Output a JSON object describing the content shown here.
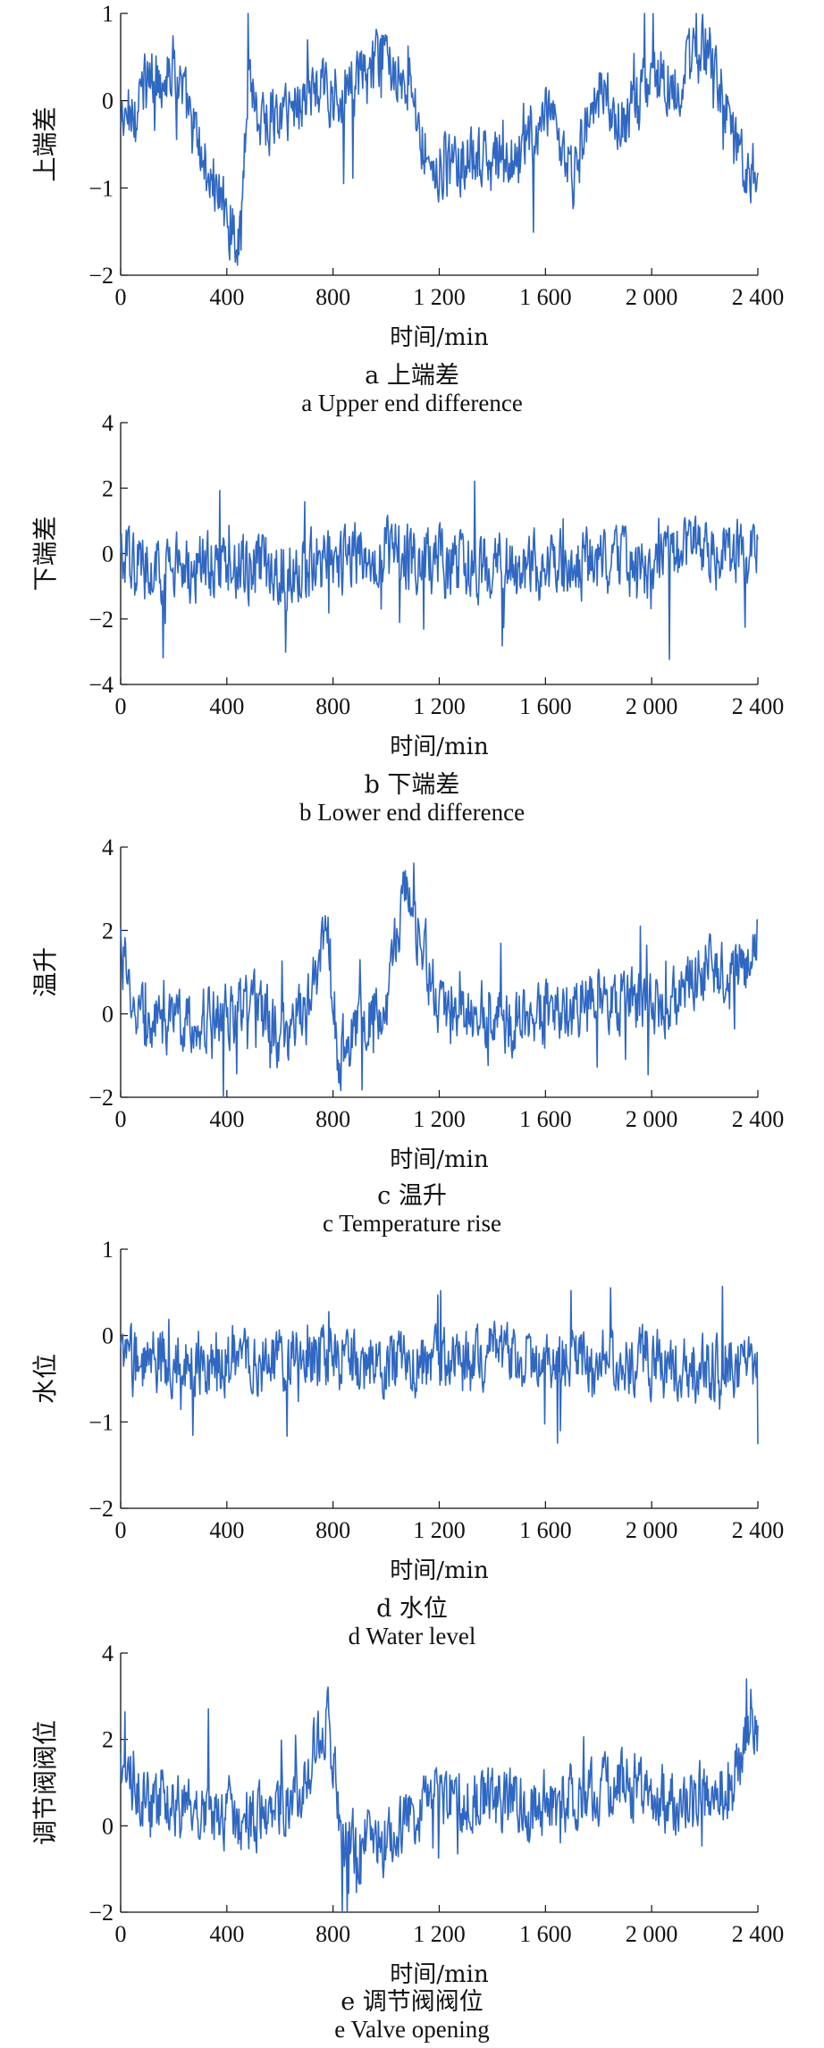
{
  "chart_data": [
    {
      "type": "line",
      "id": "a",
      "ylabel": "上端差",
      "xlabel": "时间/min",
      "caption_cn": "a  上端差",
      "caption_en": "a  Upper end difference",
      "xlim": [
        0,
        2400
      ],
      "ylim": [
        -2,
        1
      ],
      "xticks": [
        0,
        400,
        800,
        1200,
        1600,
        2000,
        2400
      ],
      "xtick_labels": [
        "0",
        "400",
        "800",
        "1 200",
        "1 600",
        "2 000",
        "2 400"
      ],
      "yticks": [
        -2,
        -1,
        0,
        1
      ],
      "ytick_labels": [
        "−2",
        "−1",
        "0",
        "1"
      ],
      "color": "#2f67c2",
      "x": [
        0,
        100,
        200,
        300,
        400,
        450,
        480,
        520,
        600,
        700,
        800,
        900,
        1000,
        1080,
        1150,
        1200,
        1300,
        1400,
        1500,
        1600,
        1700,
        1800,
        1900,
        2000,
        2100,
        2200,
        2250,
        2300,
        2400
      ],
      "y": [
        -0.3,
        0.2,
        0.4,
        -0.6,
        -1.3,
        -1.6,
        0.4,
        -0.2,
        -0.2,
        0.1,
        0.1,
        0.2,
        0.5,
        0.3,
        -0.6,
        -0.8,
        -0.7,
        -0.7,
        -0.6,
        -0.2,
        -0.9,
        0.1,
        -0.3,
        0.3,
        0.2,
        0.6,
        0.3,
        -0.5,
        -0.8
      ]
    },
    {
      "type": "line",
      "id": "b",
      "ylabel": "下端差",
      "xlabel": "时间/min",
      "caption_cn": "b  下端差",
      "caption_en": "b  Lower end difference",
      "xlim": [
        0,
        2400
      ],
      "ylim": [
        -4,
        4
      ],
      "xticks": [
        0,
        400,
        800,
        1200,
        1600,
        2000,
        2400
      ],
      "xtick_labels": [
        "0",
        "400",
        "800",
        "1 200",
        "1 600",
        "2 000",
        "2 400"
      ],
      "yticks": [
        -4,
        -2,
        0,
        2,
        4
      ],
      "ytick_labels": [
        "−4",
        "−2",
        "0",
        "2",
        "4"
      ],
      "color": "#2f67c2",
      "x": [
        0,
        200,
        400,
        600,
        800,
        1000,
        1200,
        1400,
        1600,
        1800,
        2000,
        2100,
        2200,
        2400
      ],
      "y": [
        -0.3,
        -0.5,
        -0.3,
        -0.5,
        -0.2,
        0.1,
        -0.3,
        -0.4,
        -0.4,
        -0.3,
        -0.5,
        0.0,
        0.0,
        -0.1
      ]
    },
    {
      "type": "line",
      "id": "c",
      "ylabel": "温升",
      "xlabel": "时间/min",
      "caption_cn": "c  温升",
      "caption_en": "c  Temperature rise",
      "xlim": [
        0,
        2400
      ],
      "ylim": [
        -2,
        4
      ],
      "xticks": [
        0,
        400,
        800,
        1200,
        1600,
        2000,
        2400
      ],
      "xtick_labels": [
        "0",
        "400",
        "800",
        "1 200",
        "1 600",
        "2 000",
        "2 400"
      ],
      "yticks": [
        -2,
        0,
        2,
        4
      ],
      "ytick_labels": [
        "−2",
        "0",
        "2",
        "4"
      ],
      "color": "#2f67c2",
      "x": [
        0,
        30,
        100,
        300,
        500,
        600,
        700,
        780,
        820,
        900,
        1000,
        1080,
        1130,
        1200,
        1400,
        1500,
        1700,
        1900,
        2100,
        2200,
        2300,
        2380,
        2400
      ],
      "y": [
        1.8,
        0.5,
        -0.3,
        -0.1,
        0.2,
        -0.5,
        0.0,
        2.0,
        -1.0,
        -0.3,
        0.1,
        3.5,
        1.5,
        0.2,
        0.0,
        -0.3,
        0.2,
        0.3,
        0.3,
        1.2,
        0.8,
        1.5,
        2.0
      ]
    },
    {
      "type": "line",
      "id": "d",
      "ylabel": "水位",
      "xlabel": "时间/min",
      "caption_cn": "d  水位",
      "caption_en": "d  Water level",
      "xlim": [
        0,
        2400
      ],
      "ylim": [
        -2,
        1
      ],
      "xticks": [
        0,
        400,
        800,
        1200,
        1600,
        2000,
        2400
      ],
      "xtick_labels": [
        "0",
        "400",
        "800",
        "1 200",
        "1 600",
        "2 000",
        "2 400"
      ],
      "yticks": [
        -2,
        -1,
        0,
        1
      ],
      "ytick_labels": [
        "−2",
        "−1",
        "0",
        "1"
      ],
      "color": "#2f67c2",
      "x": [
        0,
        400,
        800,
        1200,
        1600,
        2000,
        2400
      ],
      "y": [
        -0.3,
        -0.3,
        -0.3,
        -0.3,
        -0.3,
        -0.3,
        -0.4
      ]
    },
    {
      "type": "line",
      "id": "e",
      "ylabel": "调节阀阀位",
      "xlabel": "时间/min",
      "caption_cn": "e  调节阀阀位",
      "caption_en": "e  Valve opening",
      "xlim": [
        0,
        2400
      ],
      "ylim": [
        -2,
        4
      ],
      "xticks": [
        0,
        400,
        800,
        1200,
        1600,
        2000,
        2400
      ],
      "xtick_labels": [
        "0",
        "400",
        "800",
        "1 200",
        "1 600",
        "2 000",
        "2 400"
      ],
      "yticks": [
        -2,
        0,
        2,
        4
      ],
      "ytick_labels": [
        "−2",
        "0",
        "2",
        "4"
      ],
      "color": "#2f67c2",
      "x": [
        0,
        100,
        300,
        500,
        650,
        780,
        800,
        830,
        1000,
        1200,
        1400,
        1600,
        1800,
        2000,
        2100,
        2200,
        2300,
        2380,
        2400
      ],
      "y": [
        1.3,
        0.6,
        0.4,
        0.2,
        0.6,
        2.5,
        1.5,
        -0.5,
        -0.3,
        0.7,
        0.6,
        0.5,
        0.9,
        0.9,
        0.4,
        0.7,
        0.8,
        2.8,
        2.3
      ]
    }
  ]
}
